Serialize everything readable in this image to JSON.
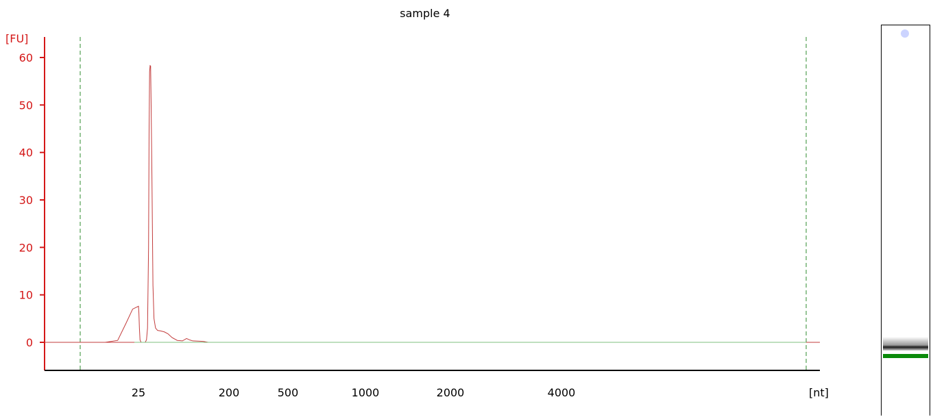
{
  "chart_data": {
    "type": "line",
    "title": "sample 4",
    "ylabel": "[FU]",
    "xlabel": "[nt]",
    "ylim": [
      -6,
      62
    ],
    "y_ticks": [
      0,
      10,
      20,
      30,
      40,
      50,
      60
    ],
    "x_ticks": [
      "25",
      "200",
      "500",
      "1000",
      "2000",
      "4000"
    ],
    "grid": false,
    "series": [
      {
        "color": "#c23b3b",
        "points": [
          [
            18.0,
            0.0
          ],
          [
            21.0,
            0.0
          ],
          [
            22.5,
            0.4
          ],
          [
            23.5,
            4.0
          ],
          [
            24.3,
            7.0
          ],
          [
            25.0,
            7.6
          ],
          [
            25.8,
            6.2
          ],
          [
            26.8,
            3.0
          ],
          [
            28.0,
            0.5
          ],
          [
            30.0,
            0.0
          ],
          [
            38.0,
            0.0
          ],
          [
            40.5,
            0.5
          ],
          [
            42.5,
            3.0
          ],
          [
            44.5,
            20.0
          ],
          [
            45.5,
            44.0
          ],
          [
            46.5,
            57.0
          ],
          [
            47.5,
            58.3
          ],
          [
            48.5,
            58.2
          ],
          [
            49.5,
            50.0
          ],
          [
            51.0,
            35.0
          ],
          [
            53.0,
            12.0
          ],
          [
            55.0,
            5.0
          ],
          [
            58.0,
            3.0
          ],
          [
            62.0,
            2.5
          ],
          [
            68.0,
            2.4
          ],
          [
            75.0,
            2.2
          ],
          [
            82.0,
            1.8
          ],
          [
            90.0,
            1.0
          ],
          [
            100.0,
            0.4
          ],
          [
            110.0,
            0.3
          ],
          [
            118.0,
            0.8
          ],
          [
            124.0,
            0.5
          ],
          [
            130.0,
            0.3
          ],
          [
            150.0,
            0.2
          ],
          [
            160.0,
            0.0
          ]
        ]
      },
      {
        "color": "#7cbf7c",
        "points": [
          [
            0,
            0.0
          ],
          [
            10000,
            0.0
          ]
        ]
      }
    ],
    "markers": [
      {
        "type": "dashed-vertical",
        "position": "lower",
        "color": "#2e8b2e"
      },
      {
        "type": "dashed-vertical",
        "position": "upper",
        "color": "#2e8b2e"
      }
    ]
  },
  "gel_lane": {
    "bands": [
      {
        "name": "sample-band",
        "color": "#1a1a1a"
      },
      {
        "name": "marker-band",
        "color": "#0a8a0a"
      }
    ],
    "spot_color": "#ccd4ff"
  }
}
